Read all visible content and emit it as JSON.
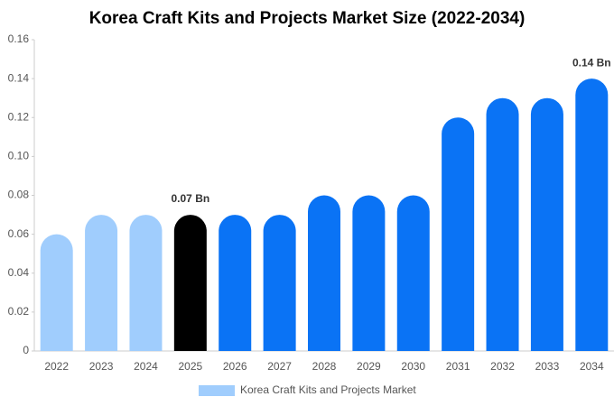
{
  "chart_data": {
    "type": "bar",
    "title": "Korea Craft Kits and Projects Market Size (2022-2034)",
    "categories": [
      "2022",
      "2023",
      "2024",
      "2025",
      "2026",
      "2027",
      "2028",
      "2029",
      "2030",
      "2031",
      "2032",
      "2033",
      "2034"
    ],
    "series": [
      {
        "name": "Korea Craft Kits and Projects Market",
        "color": "#a0cdfd",
        "values": [
          0.06,
          0.07,
          0.07,
          0.07,
          0.07,
          0.07,
          0.08,
          0.08,
          0.08,
          0.12,
          0.13,
          0.13,
          0.14
        ],
        "value_labels": [
          null,
          null,
          null,
          "0.07 Bn",
          null,
          null,
          null,
          null,
          null,
          null,
          null,
          null,
          "0.14 Bn"
        ],
        "colors": [
          "#a0cdfd",
          "#a0cdfd",
          "#a0cdfd",
          "#000000",
          "#0a73f5",
          "#0a73f5",
          "#0a73f5",
          "#0a73f5",
          "#0a73f5",
          "#0a73f5",
          "#0a73f5",
          "#0a73f5",
          "#0a73f5"
        ]
      }
    ],
    "ylim": [
      0,
      0.16
    ],
    "yticks": [
      0,
      0.02,
      0.04,
      0.06,
      0.08,
      {
        "value": 0.1,
        "label": "0.10"
      },
      0.12,
      0.14,
      0.16
    ],
    "grid": false
  }
}
